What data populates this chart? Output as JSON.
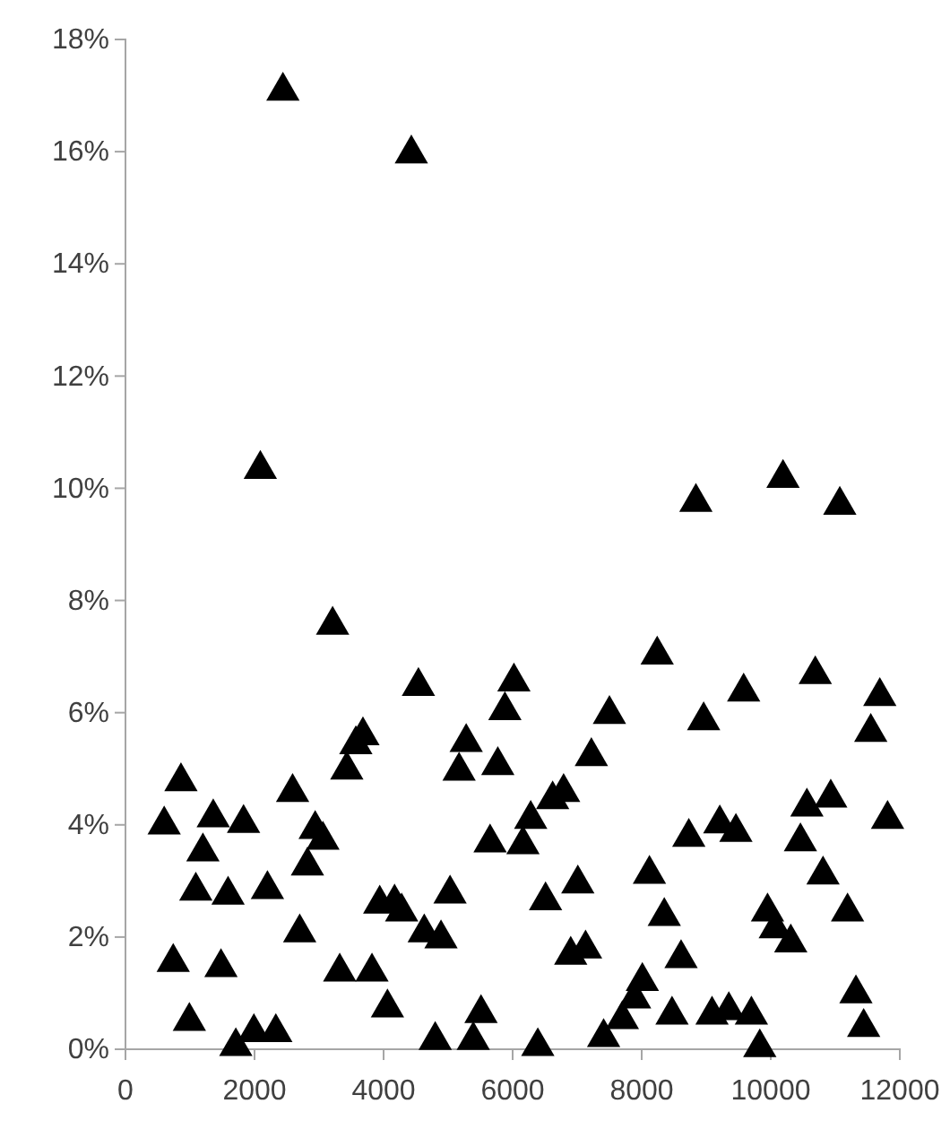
{
  "chart_data": {
    "type": "scatter",
    "marker": "triangle",
    "xlim": [
      0,
      12000
    ],
    "xticks": [
      0,
      2000,
      4000,
      6000,
      8000,
      10000,
      12000
    ],
    "ylim": [
      0,
      18
    ],
    "yticks": [
      {
        "value": 0,
        "label": "0%"
      },
      {
        "value": 2,
        "label": "2%"
      },
      {
        "value": 4,
        "label": "4%"
      },
      {
        "value": 6,
        "label": "6%"
      },
      {
        "value": 8,
        "label": "8%"
      },
      {
        "value": 10,
        "label": "10%"
      },
      {
        "value": 12,
        "label": "12%"
      },
      {
        "value": 14,
        "label": "14%"
      },
      {
        "value": 16,
        "label": "16%"
      },
      {
        "value": 18,
        "label": "18%"
      }
    ],
    "series": [
      {
        "color": "#000000",
        "x": [
          600,
          860,
          1360,
          1830,
          1200,
          1090,
          1590,
          2200,
          2590,
          2940,
          3060,
          2820,
          2700,
          740,
          1480,
          990,
          1710,
          1990,
          2330,
          3210,
          3430,
          3570,
          3680,
          3320,
          3820,
          4060,
          3940,
          4170,
          4280,
          4630,
          4890,
          5030,
          4540,
          5170,
          5280,
          5770,
          5880,
          6020,
          5650,
          4800,
          5390,
          5510,
          2440,
          4430,
          2090,
          8840,
          10190,
          11070,
          8240,
          7500,
          7220,
          8960,
          9580,
          10690,
          11690,
          11550,
          6790,
          6620,
          6280,
          6160,
          8730,
          9210,
          9460,
          10560,
          10930,
          10460,
          11810,
          10810,
          11190,
          9950,
          10070,
          10310,
          8120,
          8350,
          8610,
          7010,
          6510,
          6900,
          7130,
          8010,
          7890,
          7700,
          7410,
          6390,
          8470,
          9090,
          9350,
          9700,
          9830,
          11320,
          11440
        ],
        "values": [
          4.0,
          4.77,
          4.13,
          4.03,
          3.52,
          2.82,
          2.75,
          2.85,
          4.58,
          3.92,
          3.73,
          3.27,
          2.08,
          1.55,
          1.46,
          0.5,
          0.05,
          0.3,
          0.3,
          7.56,
          4.98,
          5.43,
          5.59,
          1.38,
          1.38,
          0.74,
          2.59,
          2.61,
          2.45,
          2.08,
          1.97,
          2.77,
          6.47,
          4.96,
          5.47,
          5.06,
          6.04,
          6.55,
          3.68,
          0.16,
          0.16,
          0.64,
          17.08,
          15.96,
          10.34,
          9.75,
          10.18,
          9.7,
          7.03,
          5.97,
          5.22,
          5.86,
          6.37,
          6.68,
          6.29,
          5.65,
          4.58,
          4.45,
          4.1,
          3.65,
          3.78,
          4.02,
          3.87,
          4.32,
          4.48,
          3.7,
          4.1,
          3.11,
          2.45,
          2.45,
          2.15,
          1.9,
          3.12,
          2.37,
          1.62,
          2.95,
          2.65,
          1.68,
          1.79,
          1.21,
          0.9,
          0.53,
          0.21,
          0.05,
          0.61,
          0.61,
          0.69,
          0.61,
          0.03,
          0.99,
          0.39
        ]
      }
    ]
  }
}
